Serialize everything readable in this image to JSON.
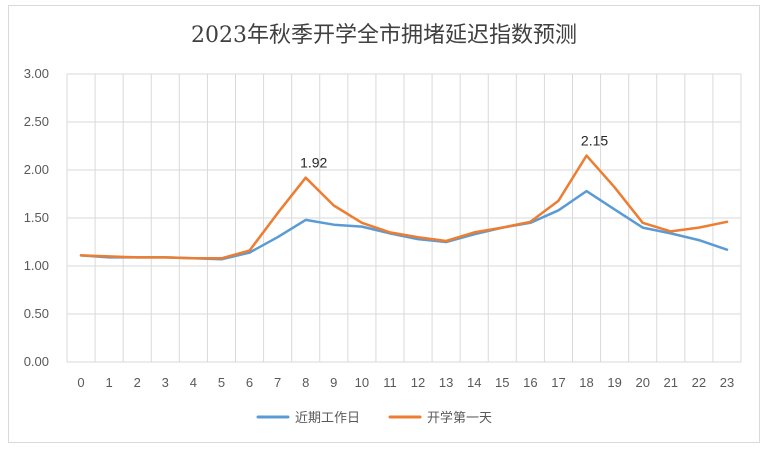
{
  "chart_data": {
    "type": "line",
    "title": "2023年秋季开学全市拥堵延迟指数预测",
    "xlabel": "",
    "ylabel": "",
    "ylim": [
      0,
      3
    ],
    "y_ticks": [
      "0.00",
      "0.50",
      "1.00",
      "1.50",
      "2.00",
      "2.50",
      "3.00"
    ],
    "categories": [
      "0",
      "1",
      "2",
      "3",
      "4",
      "5",
      "6",
      "7",
      "8",
      "9",
      "10",
      "11",
      "12",
      "13",
      "14",
      "15",
      "16",
      "17",
      "18",
      "19",
      "20",
      "21",
      "22",
      "23"
    ],
    "grid": true,
    "legend_position": "bottom",
    "series": [
      {
        "name": "近期工作日",
        "color": "#5b9bd5",
        "values": [
          1.11,
          1.09,
          1.09,
          1.09,
          1.08,
          1.07,
          1.14,
          1.3,
          1.48,
          1.43,
          1.41,
          1.34,
          1.28,
          1.25,
          1.33,
          1.4,
          1.45,
          1.58,
          1.78,
          1.59,
          1.4,
          1.34,
          1.27,
          1.17
        ]
      },
      {
        "name": "开学第一天",
        "color": "#ed7d31",
        "values": [
          1.11,
          1.1,
          1.09,
          1.09,
          1.08,
          1.08,
          1.16,
          1.55,
          1.92,
          1.63,
          1.45,
          1.35,
          1.3,
          1.26,
          1.35,
          1.4,
          1.46,
          1.68,
          2.15,
          1.82,
          1.45,
          1.36,
          1.4,
          1.46
        ]
      }
    ],
    "data_labels": [
      {
        "series": 1,
        "index": 8,
        "text": "1.92"
      },
      {
        "series": 1,
        "index": 18,
        "text": "2.15"
      }
    ]
  }
}
